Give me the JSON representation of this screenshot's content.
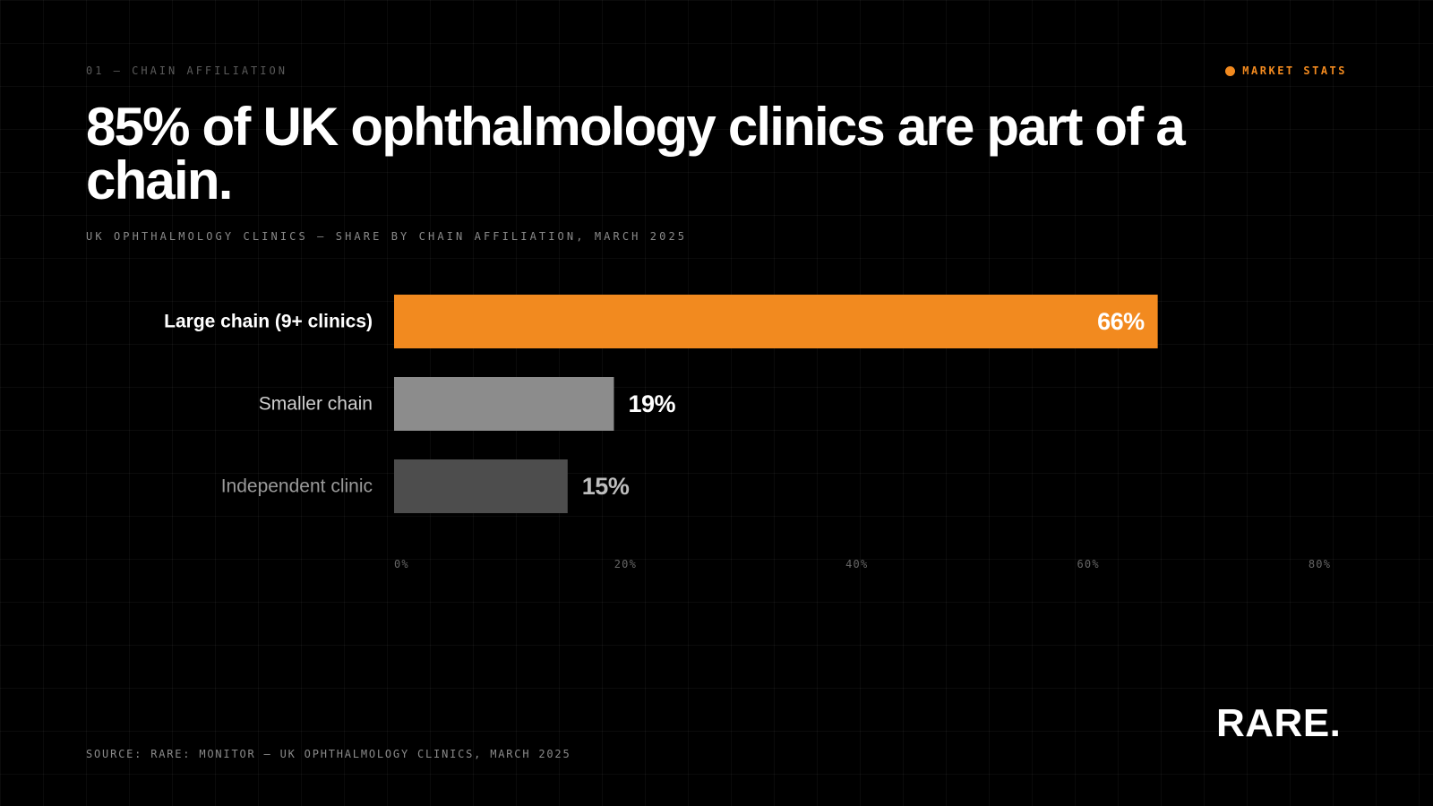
{
  "header": {
    "kicker": "01 — CHAIN AFFILIATION",
    "tag": "MARKET STATS",
    "accent_color": "#f28a1f"
  },
  "headline": "85% of UK ophthalmology clinics are part of a chain.",
  "subtitle": "UK OPHTHALMOLOGY CLINICS — SHARE BY CHAIN AFFILIATION, MARCH 2025",
  "chart_data": {
    "type": "bar",
    "orientation": "horizontal",
    "categories": [
      "Large chain (9+ clinics)",
      "Smaller chain",
      "Independent clinic"
    ],
    "values": [
      66,
      19,
      15
    ],
    "data_labels": [
      "66%",
      "19%",
      "15%"
    ],
    "colors": [
      "#f28a1f",
      "#8c8c8c",
      "#4d4d4d"
    ],
    "category_label_colors": [
      "#ffffff",
      "#cfcfcf",
      "#9a9a9a"
    ],
    "value_label_colors": [
      "#ffffff",
      "#ffffff",
      "#bdbdbd"
    ],
    "xlim": [
      0,
      80
    ],
    "xticks": [
      0,
      20,
      40,
      60,
      80
    ],
    "xtick_labels": [
      "0%",
      "20%",
      "40%",
      "60%",
      "80%"
    ],
    "grid": true
  },
  "footer": {
    "source": "SOURCE: RARE: MONITOR — UK OPHTHALMOLOGY CLINICS, MARCH 2025",
    "logo": "RARE."
  }
}
